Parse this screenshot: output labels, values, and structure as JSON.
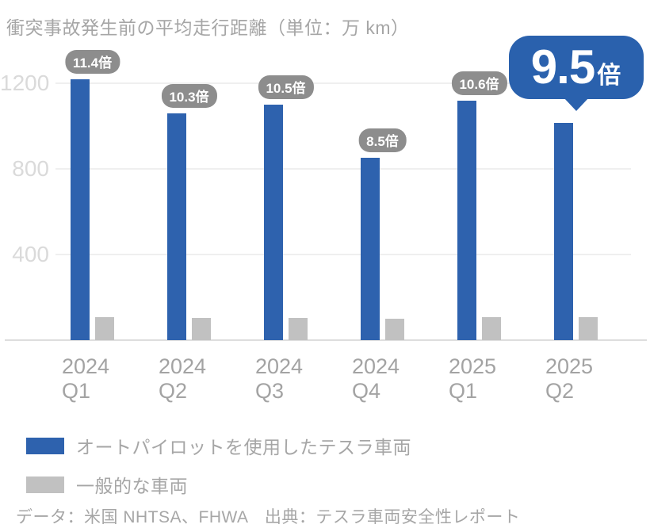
{
  "title": "衝突事故発生前の平均走行距離（単位：万 km）",
  "footer": "データ：米国 NHTSA、FHWA　出典：テスラ車両安全性レポート",
  "colors": {
    "tesla_bar": "#2e62ae",
    "generic_bar": "#c1c1c1",
    "badge_bg": "#8d8d8d",
    "highlight_bubble": "#2a61ad",
    "axis_text": "#a3a3a3",
    "ytick_text": "#dadada",
    "gridline": "#efefef"
  },
  "chart_data": {
    "type": "bar",
    "title": "衝突事故発生前の平均走行距離（単位：万 km）",
    "xlabel": "",
    "ylabel": "万 km",
    "categories": [
      "2024 Q1",
      "2024 Q2",
      "2024 Q3",
      "2024 Q4",
      "2025 Q1",
      "2025 Q2"
    ],
    "category_lines": [
      [
        "2024",
        "Q1"
      ],
      [
        "2024",
        "Q2"
      ],
      [
        "2024",
        "Q3"
      ],
      [
        "2024",
        "Q4"
      ],
      [
        "2025",
        "Q1"
      ],
      [
        "2025",
        "Q2"
      ]
    ],
    "series": [
      {
        "name": "オートパイロットを使用したテスラ車両",
        "color": "#2e62ae",
        "values": [
          1220,
          1060,
          1100,
          852,
          1120,
          1015
        ]
      },
      {
        "name": "一般的な車両",
        "color": "#c1c1c1",
        "values": [
          107,
          103,
          105,
          100,
          106,
          107
        ]
      }
    ],
    "ratio_labels": [
      "11.4倍",
      "10.3倍",
      "10.5倍",
      "8.5倍",
      "10.6倍",
      "9.5倍"
    ],
    "highlight_index": 5,
    "highlight_value": "9.5",
    "highlight_suffix": "倍",
    "yticks": [
      400,
      800,
      1200
    ],
    "ylim": [
      0,
      1300
    ],
    "grid": true,
    "legend_position": "bottom-left"
  },
  "legend": {
    "items": [
      {
        "label": "オートパイロットを使用したテスラ車両",
        "color": "#2e62ae"
      },
      {
        "label": "一般的な車両",
        "color": "#c1c1c1"
      }
    ]
  }
}
